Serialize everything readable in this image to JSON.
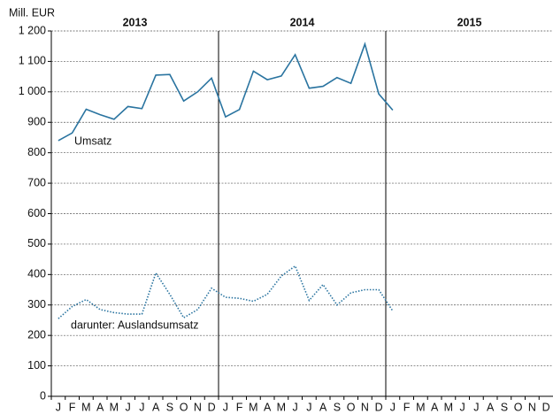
{
  "chart_data": {
    "type": "line",
    "y_label": "Mill. EUR",
    "years": [
      "2013",
      "2014",
      "2015"
    ],
    "categories": [
      "J",
      "F",
      "M",
      "A",
      "M",
      "J",
      "J",
      "A",
      "S",
      "O",
      "N",
      "D",
      "J",
      "F",
      "M",
      "A",
      "M",
      "J",
      "J",
      "A",
      "S",
      "O",
      "N",
      "D",
      "J",
      "F",
      "M",
      "A",
      "M",
      "J",
      "J",
      "A",
      "S",
      "O",
      "N",
      "D"
    ],
    "series": [
      {
        "name": "Umsatz",
        "color": "#2a74a0",
        "style": "solid",
        "values": [
          840,
          865,
          943,
          925,
          910,
          952,
          945,
          1055,
          1057,
          970,
          1000,
          1045,
          918,
          942,
          1068,
          1040,
          1052,
          1122,
          1012,
          1018,
          1047,
          1028,
          1157,
          993,
          940,
          null,
          null,
          null,
          null,
          null,
          null,
          null,
          null,
          null,
          null,
          null
        ]
      },
      {
        "name": "darunter: Auslandsumsatz",
        "color": "#2a74a0",
        "style": "dotted",
        "values": [
          255,
          295,
          318,
          285,
          275,
          270,
          270,
          405,
          335,
          258,
          285,
          355,
          325,
          322,
          312,
          335,
          395,
          428,
          315,
          367,
          300,
          340,
          350,
          350,
          280,
          null,
          null,
          null,
          null,
          null,
          null,
          null,
          null,
          null,
          null,
          null
        ]
      }
    ],
    "ylim": [
      0,
      1200
    ],
    "yticks": [
      0,
      100,
      200,
      300,
      400,
      500,
      600,
      700,
      800,
      900,
      1000,
      1100,
      1200
    ],
    "ytick_labels": [
      null,
      null,
      null,
      null,
      null,
      null,
      null,
      null,
      null,
      null,
      {
        "value": 1000,
        "label": "1 000"
      },
      {
        "value": 1100,
        "label": "1 100"
      },
      {
        "value": 1200,
        "label": "1 200"
      }
    ],
    "grid": true
  }
}
